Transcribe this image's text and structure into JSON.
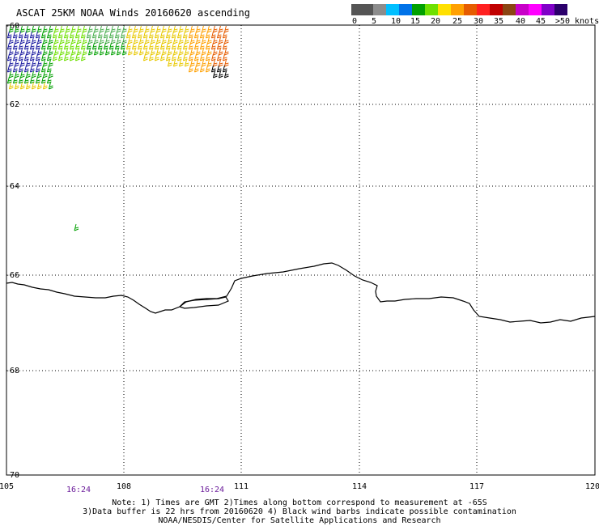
{
  "header": {
    "title": "ASCAT 25KM NOAA Winds 20160620 ascending"
  },
  "legend": {
    "colors": [
      "#555555",
      "#8c8c8c",
      "#00bfff",
      "#0072e8",
      "#00a000",
      "#6ee000",
      "#ffe000",
      "#ffa000",
      "#e65c00",
      "#ff2020",
      "#c00000",
      "#8b4513",
      "#c800c8",
      "#ff00ff",
      "#8000c8",
      "#2b006b"
    ],
    "labels": [
      "0",
      "5",
      "10",
      "15",
      "20",
      "25",
      "30",
      "35",
      "40",
      "45",
      ">50 knots"
    ]
  },
  "axes": {
    "lat_labels": [
      "-60",
      "-62",
      "-64",
      "-66",
      "-68",
      "-70"
    ],
    "lon_labels": [
      "105",
      "108",
      "111",
      "114",
      "117",
      "120"
    ]
  },
  "times": [
    "16:24",
    "16:24"
  ],
  "notes": {
    "line1": "Note: 1) Times are GMT 2)Times along bottom correspond to measurement at -65S",
    "line2": "3)Data buffer is 22 hrs from 20160620 4) Black wind barbs indicate possible contamination",
    "line3": "NOAA/NESDIS/Center for Satellite Applications and Research"
  }
}
